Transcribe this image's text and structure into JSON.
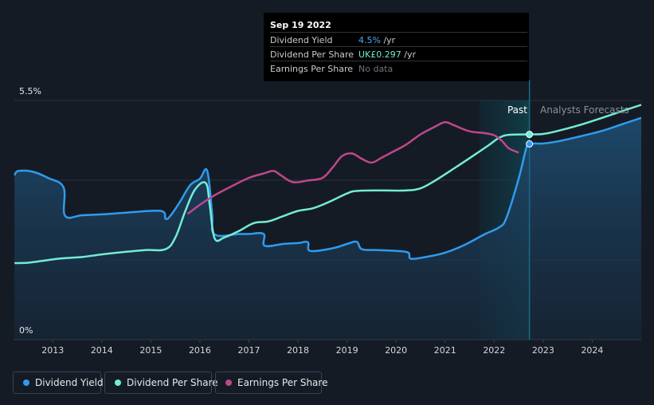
{
  "tooltip": {
    "date": "Sep 19 2022",
    "rows": [
      {
        "label": "Dividend Yield",
        "value": "4.5%",
        "unit": " /yr",
        "color": "#4ea8ee"
      },
      {
        "label": "Dividend Per Share",
        "value": "UK£0.297",
        "unit": " /yr",
        "color": "#73ecd4"
      },
      {
        "label": "Earnings Per Share",
        "value": "No data",
        "unit": "",
        "color": "#6d7380"
      }
    ]
  },
  "chart_data": {
    "type": "line",
    "title": "",
    "y_axis": {
      "top_label": "5.5%",
      "bottom_label": "0%",
      "ylim": [
        0,
        5.5
      ]
    },
    "x_ticks": [
      "2013",
      "2014",
      "2015",
      "2016",
      "2017",
      "2018",
      "2019",
      "2020",
      "2021",
      "2022",
      "2023",
      "2024"
    ],
    "xlim": [
      2012.2,
      2025.0
    ],
    "past_label": "Past",
    "forecast_label": "Analysts Forecasts",
    "forecast_start": 2022.72,
    "shade_start": 2021.7,
    "series": [
      {
        "name": "Dividend Yield",
        "color": "#2f9bee",
        "unit": "%",
        "fill": true,
        "points": [
          [
            2012.22,
            3.78
          ],
          [
            2012.3,
            3.88
          ],
          [
            2012.6,
            3.86
          ],
          [
            2012.9,
            3.72
          ],
          [
            2013.22,
            3.5
          ],
          [
            2013.25,
            2.85
          ],
          [
            2013.6,
            2.86
          ],
          [
            2014.0,
            2.88
          ],
          [
            2014.5,
            2.92
          ],
          [
            2015.2,
            2.96
          ],
          [
            2015.3,
            2.78
          ],
          [
            2015.4,
            2.85
          ],
          [
            2015.6,
            3.18
          ],
          [
            2015.8,
            3.55
          ],
          [
            2016.0,
            3.7
          ],
          [
            2016.15,
            3.88
          ],
          [
            2016.25,
            2.9
          ],
          [
            2016.3,
            2.42
          ],
          [
            2016.8,
            2.43
          ],
          [
            2017.0,
            2.43
          ],
          [
            2017.3,
            2.43
          ],
          [
            2017.32,
            2.16
          ],
          [
            2017.7,
            2.2
          ],
          [
            2018.0,
            2.22
          ],
          [
            2018.2,
            2.24
          ],
          [
            2018.25,
            2.04
          ],
          [
            2018.7,
            2.1
          ],
          [
            2019.0,
            2.2
          ],
          [
            2019.2,
            2.25
          ],
          [
            2019.3,
            2.08
          ],
          [
            2019.6,
            2.06
          ],
          [
            2020.0,
            2.04
          ],
          [
            2020.25,
            2.0
          ],
          [
            2020.3,
            1.86
          ],
          [
            2020.6,
            1.9
          ],
          [
            2021.0,
            2.0
          ],
          [
            2021.4,
            2.18
          ],
          [
            2021.8,
            2.42
          ],
          [
            2022.1,
            2.58
          ],
          [
            2022.25,
            2.8
          ],
          [
            2022.5,
            3.7
          ],
          [
            2022.65,
            4.38
          ],
          [
            2022.72,
            4.5
          ],
          [
            2023.0,
            4.51
          ],
          [
            2023.3,
            4.56
          ],
          [
            2023.7,
            4.66
          ],
          [
            2024.2,
            4.8
          ],
          [
            2024.6,
            4.95
          ],
          [
            2025.0,
            5.1
          ]
        ]
      },
      {
        "name": "Dividend Per Share",
        "color": "#73ecd4",
        "unit": "UK£",
        "fill": false,
        "points": [
          [
            2012.22,
            1.76
          ],
          [
            2012.5,
            1.77
          ],
          [
            2012.9,
            1.83
          ],
          [
            2013.2,
            1.87
          ],
          [
            2013.6,
            1.9
          ],
          [
            2014.0,
            1.96
          ],
          [
            2014.5,
            2.02
          ],
          [
            2014.9,
            2.06
          ],
          [
            2015.3,
            2.08
          ],
          [
            2015.5,
            2.35
          ],
          [
            2015.7,
            2.95
          ],
          [
            2015.9,
            3.45
          ],
          [
            2016.12,
            3.6
          ],
          [
            2016.2,
            3.1
          ],
          [
            2016.3,
            2.33
          ],
          [
            2016.5,
            2.35
          ],
          [
            2016.8,
            2.5
          ],
          [
            2017.1,
            2.68
          ],
          [
            2017.4,
            2.72
          ],
          [
            2017.7,
            2.84
          ],
          [
            2018.0,
            2.96
          ],
          [
            2018.3,
            3.02
          ],
          [
            2018.6,
            3.15
          ],
          [
            2019.0,
            3.36
          ],
          [
            2019.2,
            3.42
          ],
          [
            2019.7,
            3.43
          ],
          [
            2020.2,
            3.43
          ],
          [
            2020.5,
            3.48
          ],
          [
            2020.8,
            3.66
          ],
          [
            2021.2,
            3.95
          ],
          [
            2021.6,
            4.25
          ],
          [
            2021.9,
            4.48
          ],
          [
            2022.1,
            4.64
          ],
          [
            2022.3,
            4.71
          ],
          [
            2022.72,
            4.72
          ],
          [
            2023.0,
            4.73
          ],
          [
            2023.3,
            4.8
          ],
          [
            2023.7,
            4.92
          ],
          [
            2024.2,
            5.1
          ],
          [
            2024.6,
            5.25
          ],
          [
            2025.0,
            5.4
          ]
        ]
      },
      {
        "name": "Earnings Per Share",
        "color": "#c0478b",
        "unit": "UK£",
        "fill": false,
        "points": [
          [
            2015.75,
            2.89
          ],
          [
            2016.0,
            3.1
          ],
          [
            2016.3,
            3.32
          ],
          [
            2016.6,
            3.5
          ],
          [
            2017.0,
            3.72
          ],
          [
            2017.3,
            3.82
          ],
          [
            2017.5,
            3.88
          ],
          [
            2017.65,
            3.78
          ],
          [
            2017.9,
            3.62
          ],
          [
            2018.2,
            3.66
          ],
          [
            2018.5,
            3.72
          ],
          [
            2018.7,
            3.95
          ],
          [
            2018.9,
            4.22
          ],
          [
            2019.1,
            4.28
          ],
          [
            2019.3,
            4.16
          ],
          [
            2019.5,
            4.07
          ],
          [
            2019.7,
            4.18
          ],
          [
            2019.9,
            4.3
          ],
          [
            2020.2,
            4.48
          ],
          [
            2020.5,
            4.72
          ],
          [
            2020.8,
            4.9
          ],
          [
            2021.0,
            5.0
          ],
          [
            2021.2,
            4.92
          ],
          [
            2021.5,
            4.79
          ],
          [
            2021.8,
            4.75
          ],
          [
            2022.0,
            4.7
          ],
          [
            2022.15,
            4.58
          ],
          [
            2022.3,
            4.4
          ],
          [
            2022.5,
            4.3
          ]
        ]
      }
    ],
    "markers": [
      {
        "series": "Dividend Per Share",
        "x": 2022.72,
        "value": 4.72
      },
      {
        "series": "Dividend Yield",
        "x": 2022.72,
        "value": 4.5
      }
    ],
    "legend": [
      {
        "label": "Dividend Yield",
        "color": "#2f9bee"
      },
      {
        "label": "Dividend Per Share",
        "color": "#73ecd4"
      },
      {
        "label": "Earnings Per Share",
        "color": "#c0478b"
      }
    ]
  }
}
